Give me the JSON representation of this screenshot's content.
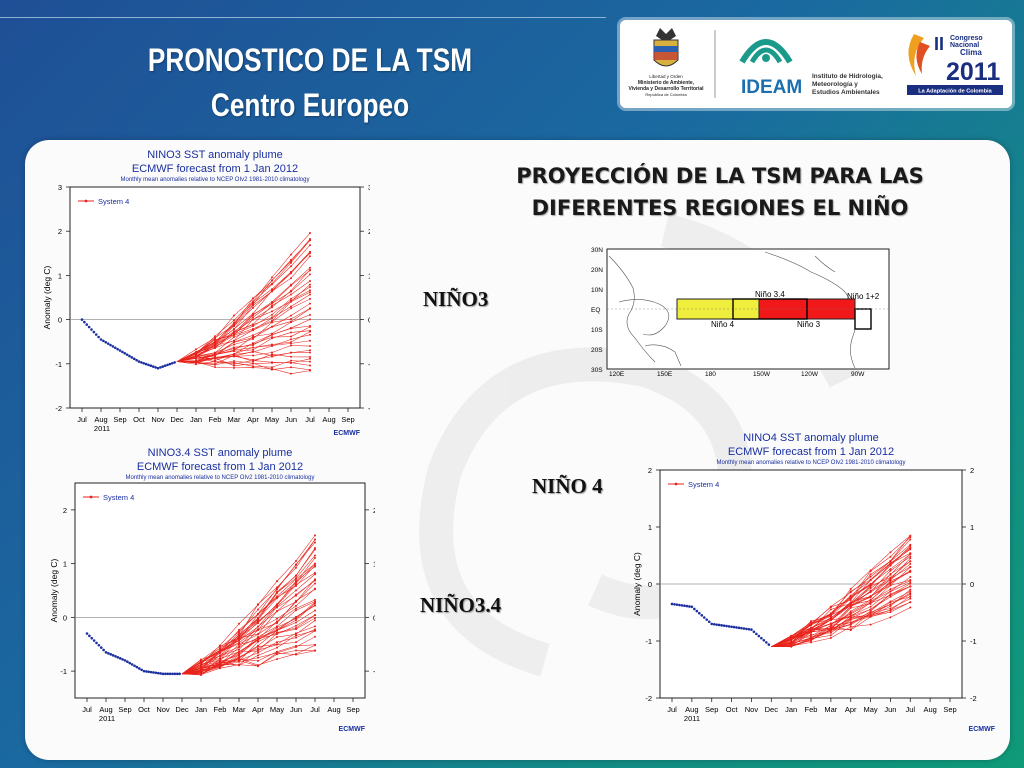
{
  "slide": {
    "title_line1": "PRONOSTICO DE LA TSM",
    "title_line2": "Centro Europeo",
    "heading_line1": "PROYECCIÓN DE LA TSM PARA LAS",
    "heading_line2": "DIFERENTES REGIONES EL NIÑO",
    "label_nino3": "NIÑO3",
    "label_nino4": "NIÑO 4",
    "label_nino34": "NIÑO3.4"
  },
  "logos": {
    "gov_line1": "Libertad y Orden",
    "gov_line2": "Ministerio de Ambiente,",
    "gov_line3": "Vivienda y Desarrollo Territorial",
    "gov_line4": "República de Colombia",
    "ideam": "IDEAM",
    "ideam_line1": "Instituto de Hidrología,",
    "ideam_line2": "Meteorología y",
    "ideam_line3": "Estudios Ambientales",
    "congreso_num": "II",
    "congreso_line1": "Congreso",
    "congreso_line2": "Nacional",
    "congreso_line3": "Clima",
    "congreso_year": "2011",
    "congreso_tag": "La Adaptación de Colombia"
  },
  "map": {
    "lat_labels": [
      "30N",
      "20N",
      "10N",
      "EQ",
      "10S",
      "20S",
      "30S"
    ],
    "lon_labels": [
      "120E",
      "150E",
      "180",
      "150W",
      "120W",
      "90W"
    ],
    "region_labels": {
      "n34": "Niño 3.4",
      "n12": "Niño 1+2",
      "n4": "Niño 4",
      "n3": "Niño 3"
    },
    "colors": {
      "nino4": "#f0ee3c",
      "nino3": "#f01818"
    }
  },
  "chart_data": [
    {
      "type": "line",
      "title": "NINO3 SST anomaly plume",
      "subtitle": "ECMWF forecast from 1 Jan 2012",
      "note": "Monthly mean anomalies relative to NCEP OIv2 1981-2010 climatology",
      "ylabel": "Anomaly (deg C)",
      "xlabel_year": "2011",
      "x_ticks": [
        "Jul",
        "Aug",
        "Sep",
        "Oct",
        "Nov",
        "Dec",
        "Jan",
        "Feb",
        "Mar",
        "Apr",
        "May",
        "Jun",
        "Jul",
        "Aug",
        "Sep"
      ],
      "ylim": [
        -2,
        3
      ],
      "y_ticks": [
        -2,
        -1,
        0,
        1,
        2,
        3
      ],
      "legend": "System 4",
      "credit": "ECMWF",
      "observed": [
        0.0,
        -0.45,
        -0.7,
        -0.95,
        -1.1,
        -0.95
      ],
      "ensemble_start": -0.95,
      "ensemble_end_range": [
        -1.2,
        2.0
      ],
      "colors": {
        "observed": "#1c2fa0",
        "forecast": "#e8231c"
      }
    },
    {
      "type": "line",
      "title": "NINO3.4 SST anomaly plume",
      "subtitle": "ECMWF forecast from 1 Jan 2012",
      "note": "Monthly mean anomalies relative to NCEP OIv2 1981-2010 climatology",
      "ylabel": "Anomaly (deg C)",
      "xlabel_year": "2011",
      "x_ticks": [
        "Jul",
        "Aug",
        "Sep",
        "Oct",
        "Nov",
        "Dec",
        "Jan",
        "Feb",
        "Mar",
        "Apr",
        "May",
        "Jun",
        "Jul",
        "Aug",
        "Sep"
      ],
      "ylim": [
        -1.5,
        2.5
      ],
      "y_ticks": [
        -1,
        0,
        1,
        2
      ],
      "legend": "System 4",
      "credit": "ECMWF",
      "observed": [
        -0.3,
        -0.65,
        -0.8,
        -1.0,
        -1.05,
        -1.05
      ],
      "ensemble_start": -1.05,
      "ensemble_end_range": [
        -0.6,
        1.5
      ],
      "colors": {
        "observed": "#1c2fa0",
        "forecast": "#e8231c"
      }
    },
    {
      "type": "line",
      "title": "NINO4 SST anomaly plume",
      "subtitle": "ECMWF forecast from 1 Jan 2012",
      "note": "Monthly mean anomalies relative to NCEP OIv2 1981-2010 climatology",
      "ylabel": "Anomaly (deg C)",
      "xlabel_year": "2011",
      "x_ticks": [
        "Jul",
        "Aug",
        "Sep",
        "Oct",
        "Nov",
        "Dec",
        "Jan",
        "Feb",
        "Mar",
        "Apr",
        "May",
        "Jun",
        "Jul",
        "Aug",
        "Sep"
      ],
      "ylim": [
        -2,
        2
      ],
      "y_ticks": [
        -2,
        -1,
        0,
        1,
        2
      ],
      "legend": "System 4",
      "credit": "ECMWF",
      "observed": [
        -0.35,
        -0.4,
        -0.7,
        -0.75,
        -0.8,
        -1.1
      ],
      "ensemble_start": -1.1,
      "ensemble_end_range": [
        -0.4,
        0.85
      ],
      "colors": {
        "observed": "#1c2fa0",
        "forecast": "#e8231c"
      }
    }
  ]
}
